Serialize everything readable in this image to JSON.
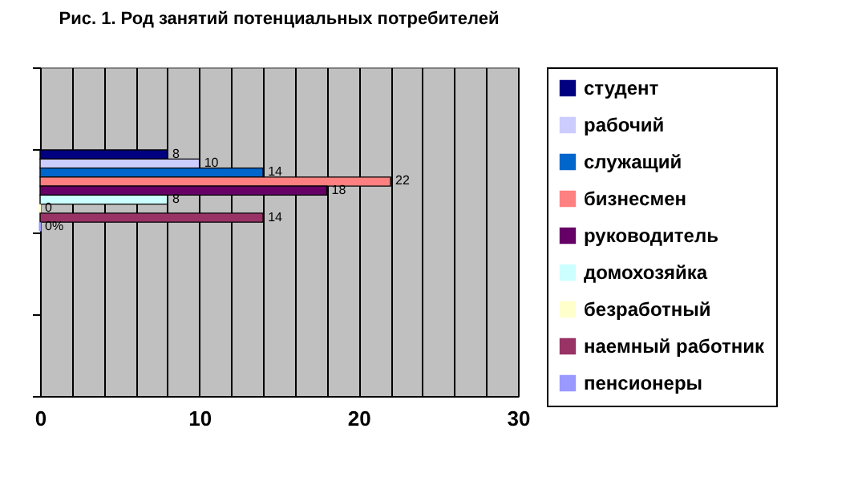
{
  "chart_data": {
    "type": "bar",
    "orientation": "horizontal",
    "title": "Рис. 1. Род занятий потенциальных потребителей",
    "categories": [
      null,
      null,
      null,
      null
    ],
    "series": [
      {
        "name": "студент",
        "color": "#000080",
        "values": [
          null,
          8,
          null,
          null
        ],
        "value_labels": [
          null,
          "8",
          null,
          null
        ]
      },
      {
        "name": "рабочий",
        "color": "#ccccff",
        "values": [
          null,
          10,
          null,
          null
        ],
        "value_labels": [
          null,
          "10",
          null,
          null
        ]
      },
      {
        "name": "служащий",
        "color": "#0066cc",
        "values": [
          null,
          14,
          null,
          null
        ],
        "value_labels": [
          null,
          "14",
          null,
          null
        ]
      },
      {
        "name": "бизнесмен",
        "color": "#ff8080",
        "values": [
          null,
          22,
          null,
          null
        ],
        "value_labels": [
          null,
          "22",
          null,
          null
        ]
      },
      {
        "name": "руководитель",
        "color": "#660066",
        "values": [
          null,
          18,
          null,
          null
        ],
        "value_labels": [
          null,
          "18",
          null,
          null
        ]
      },
      {
        "name": "домохозяйка",
        "color": "#ccffff",
        "values": [
          null,
          8,
          null,
          null
        ],
        "value_labels": [
          null,
          "8",
          null,
          null
        ]
      },
      {
        "name": "безработный",
        "color": "#ffffcc",
        "values": [
          null,
          0,
          null,
          null
        ],
        "value_labels": [
          null,
          "0",
          null,
          null
        ]
      },
      {
        "name": "наемный работник",
        "color": "#993366",
        "values": [
          null,
          14,
          null,
          null
        ],
        "value_labels": [
          null,
          "14",
          null,
          null
        ]
      },
      {
        "name": "пенсионеры",
        "color": "#9999ff",
        "values": [
          null,
          0,
          null,
          null
        ],
        "value_labels": [
          null,
          "0%",
          null,
          null
        ]
      }
    ],
    "xlim": [
      0,
      30
    ],
    "xticks": [
      0,
      {
        "value": 2,
        "label": null
      },
      {
        "value": 4,
        "label": null
      },
      {
        "value": 6,
        "label": null
      },
      {
        "value": 8,
        "label": null
      },
      10,
      {
        "value": 12,
        "label": null
      },
      {
        "value": 14,
        "label": null
      },
      {
        "value": 16,
        "label": null
      },
      {
        "value": 18,
        "label": null
      },
      20,
      {
        "value": 22,
        "label": null
      },
      {
        "value": 24,
        "label": null
      },
      {
        "value": 26,
        "label": null
      },
      {
        "value": 28,
        "label": null
      },
      30
    ],
    "grid": "x",
    "legend": "right"
  }
}
